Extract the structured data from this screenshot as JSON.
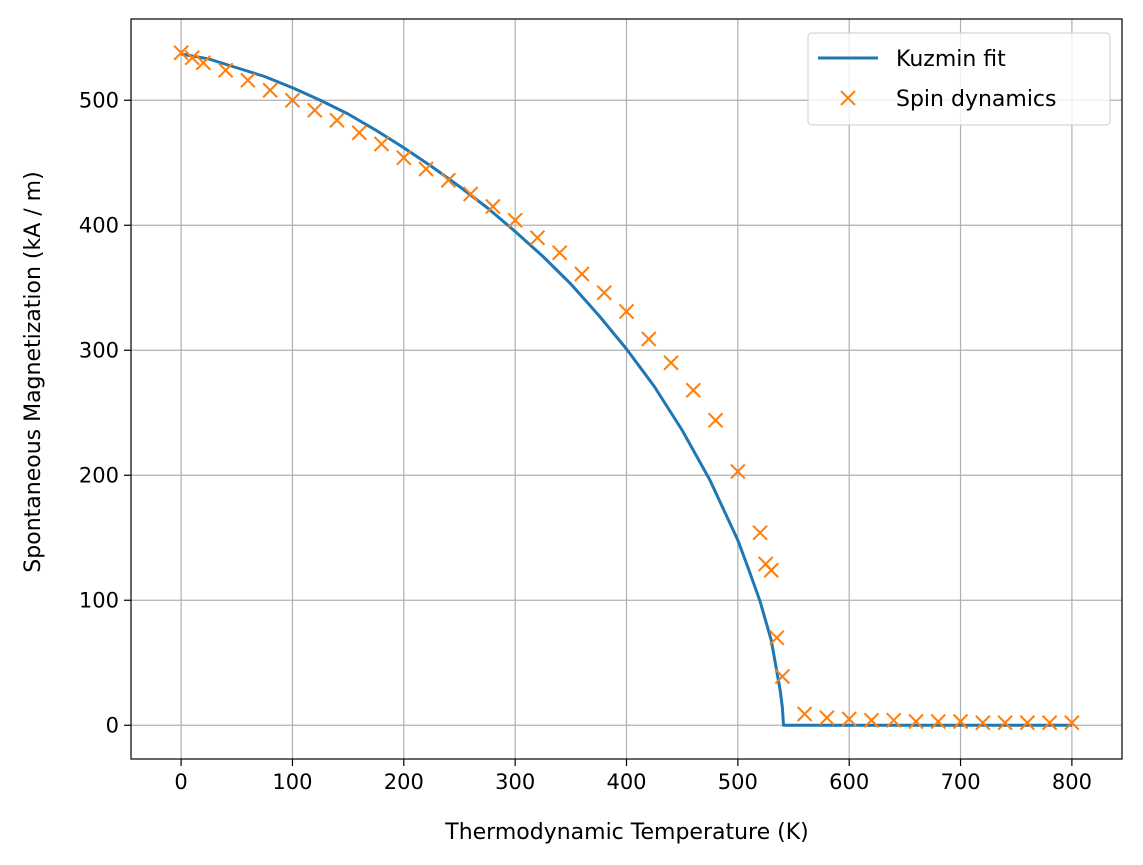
{
  "chart_data": {
    "type": "line",
    "xlabel": "Thermodynamic Temperature (K)",
    "ylabel": "Spontaneous Magnetization (kA / m)",
    "xlim": [
      -45,
      845
    ],
    "ylim": [
      -27,
      565
    ],
    "xticks": [
      0,
      100,
      200,
      300,
      400,
      500,
      600,
      700,
      800
    ],
    "yticks": [
      0,
      100,
      200,
      300,
      400,
      500
    ],
    "grid": true,
    "legend_position": "top-right",
    "series": [
      {
        "name": "Kuzmin fit",
        "style": "line",
        "color": "#1f77b4",
        "x": [
          0,
          25,
          50,
          75,
          100,
          125,
          150,
          175,
          200,
          225,
          250,
          275,
          300,
          325,
          350,
          375,
          400,
          425,
          450,
          475,
          500,
          510,
          520,
          530,
          535,
          538,
          540,
          541,
          560,
          600,
          700,
          800
        ],
        "y": [
          537,
          533,
          526,
          519,
          510,
          500,
          489,
          476,
          462,
          447,
          431,
          414,
          395,
          375,
          353,
          328,
          301,
          271,
          236,
          196,
          148,
          124,
          99,
          68,
          43,
          28,
          14,
          0,
          0,
          0,
          0,
          0
        ]
      },
      {
        "name": "Spin dynamics",
        "style": "markers",
        "marker": "x",
        "color": "#ff7f0e",
        "x": [
          0,
          10,
          20,
          40,
          60,
          80,
          100,
          120,
          140,
          160,
          180,
          200,
          220,
          240,
          260,
          280,
          300,
          320,
          340,
          360,
          380,
          400,
          420,
          440,
          460,
          480,
          500,
          520,
          525,
          530,
          535,
          540,
          560,
          580,
          600,
          620,
          640,
          660,
          680,
          700,
          720,
          740,
          760,
          780,
          800
        ],
        "y": [
          538,
          534,
          530,
          524,
          516,
          508,
          500,
          492,
          484,
          474,
          465,
          454,
          445,
          436,
          425,
          415,
          404,
          390,
          378,
          361,
          346,
          331,
          309,
          290,
          268,
          244,
          203,
          154,
          129,
          124,
          70,
          39,
          9,
          6,
          5,
          4,
          4,
          3,
          3,
          3,
          2,
          2,
          2,
          2,
          2
        ]
      }
    ]
  }
}
